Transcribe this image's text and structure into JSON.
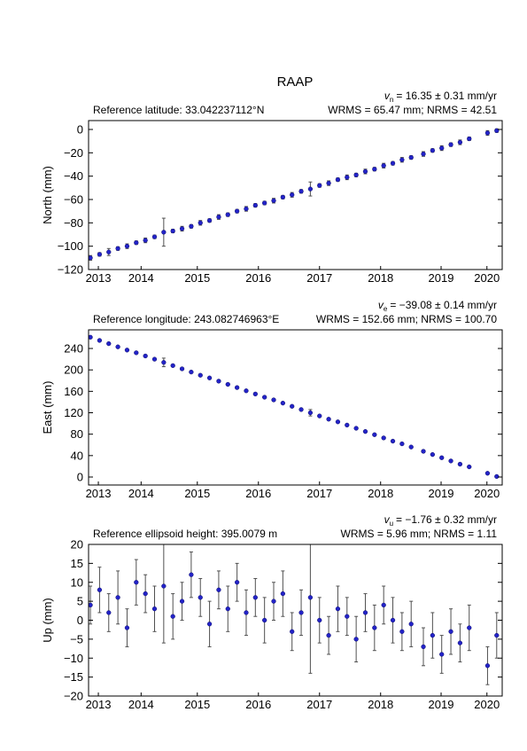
{
  "title": "RAAP",
  "chart_data": [
    {
      "type": "scatter",
      "y_label": "North (mm)",
      "reference": "Reference latitude: 33.042237112°N",
      "velocity": {
        "symbol": "v",
        "subscript": "n",
        "text": "= 16.35 ± 0.31 mm/yr"
      },
      "stats": "WRMS = 65.47 mm; NRMS = 42.51",
      "xlim": [
        2013.72,
        2020.49
      ],
      "xticks": [
        {
          "value": 2013.88,
          "label": "2013"
        },
        {
          "value": 2014.58,
          "label": "2014"
        },
        {
          "value": 2015.5,
          "label": "2015"
        },
        {
          "value": 2016.5,
          "label": "2016"
        },
        {
          "value": 2017.5,
          "label": "2017"
        },
        {
          "value": 2018.5,
          "label": "2018"
        },
        {
          "value": 2019.49,
          "label": "2019"
        },
        {
          "value": 2020.24,
          "label": "2020"
        }
      ],
      "ylim": [
        -120,
        7.6
      ],
      "yticks": [
        {
          "value": -120,
          "label": "−120"
        },
        {
          "value": -100,
          "label": "−100"
        },
        {
          "value": -80,
          "label": "−80"
        },
        {
          "value": -60,
          "label": "−60"
        },
        {
          "value": -40,
          "label": "−40"
        },
        {
          "value": -20,
          "label": "−20"
        },
        0
      ],
      "color": "#2323c8",
      "error_color": "#505050",
      "x": [
        2013.75,
        2013.9,
        2014.05,
        2014.2,
        2014.35,
        2014.5,
        2014.65,
        2014.8,
        2014.95,
        2015.1,
        2015.25,
        2015.4,
        2015.55,
        2015.7,
        2015.85,
        2016.0,
        2016.15,
        2016.3,
        2016.45,
        2016.6,
        2016.75,
        2016.9,
        2017.05,
        2017.2,
        2017.35,
        2017.5,
        2017.65,
        2017.8,
        2017.95,
        2018.1,
        2018.25,
        2018.4,
        2018.55,
        2018.7,
        2018.85,
        2019.0,
        2019.2,
        2019.35,
        2019.5,
        2019.65,
        2019.8,
        2019.95,
        2020.25,
        2020.4
      ],
      "values": [
        -110,
        -107,
        -105,
        -102,
        -100,
        -97,
        -95,
        -92,
        -88,
        -87,
        -85,
        -83,
        -80,
        -78,
        -75,
        -73,
        -70,
        -68,
        -65,
        -63,
        -61,
        -58,
        -56,
        -53,
        -51,
        -48,
        -46,
        -43,
        -41,
        -39,
        -36,
        -34,
        -31,
        -29,
        -26,
        -24,
        -21,
        -18,
        -16,
        -13,
        -11,
        -8,
        -3,
        -1
      ],
      "errors": [
        2,
        1.5,
        3,
        1.5,
        2,
        1.5,
        2,
        1.5,
        12,
        1.5,
        2,
        1.5,
        2,
        1.5,
        2,
        1.5,
        1.5,
        2,
        1.5,
        1.5,
        2,
        1.5,
        2,
        1.5,
        6,
        1.5,
        2,
        1.5,
        2,
        1.5,
        2,
        1.5,
        2,
        1.5,
        2,
        1.5,
        2,
        1.5,
        2,
        1.5,
        2,
        1.5,
        2,
        1.5
      ]
    },
    {
      "type": "scatter",
      "y_label": "East (mm)",
      "reference": "Reference longitude: 243.082746963°E",
      "velocity": {
        "symbol": "v",
        "subscript": "e",
        "text": "= −39.08 ± 0.14 mm/yr"
      },
      "stats": "WRMS = 152.66 mm; NRMS = 100.70",
      "xlim": [
        2013.72,
        2020.49
      ],
      "xticks": [
        {
          "value": 2013.88,
          "label": "2013"
        },
        {
          "value": 2014.58,
          "label": "2014"
        },
        {
          "value": 2015.5,
          "label": "2015"
        },
        {
          "value": 2016.5,
          "label": "2016"
        },
        {
          "value": 2017.5,
          "label": "2017"
        },
        {
          "value": 2018.5,
          "label": "2018"
        },
        {
          "value": 2019.49,
          "label": "2019"
        },
        {
          "value": 2020.24,
          "label": "2020"
        }
      ],
      "ylim": [
        -14.9,
        274.8
      ],
      "yticks": [
        0,
        40,
        80,
        120,
        160,
        200,
        240
      ],
      "color": "#2323c8",
      "error_color": "#505050",
      "x": [
        2013.75,
        2013.9,
        2014.05,
        2014.2,
        2014.35,
        2014.5,
        2014.65,
        2014.8,
        2014.95,
        2015.1,
        2015.25,
        2015.4,
        2015.55,
        2015.7,
        2015.85,
        2016.0,
        2016.15,
        2016.3,
        2016.45,
        2016.6,
        2016.75,
        2016.9,
        2017.05,
        2017.2,
        2017.35,
        2017.5,
        2017.65,
        2017.8,
        2017.95,
        2018.1,
        2018.25,
        2018.4,
        2018.55,
        2018.7,
        2018.85,
        2019.0,
        2019.2,
        2019.35,
        2019.5,
        2019.65,
        2019.8,
        2019.95,
        2020.25,
        2020.4
      ],
      "values": [
        261,
        255,
        249,
        243,
        237,
        232,
        226,
        220,
        214,
        208,
        202,
        196,
        190,
        185,
        179,
        173,
        167,
        161,
        155,
        149,
        144,
        138,
        132,
        126,
        120,
        114,
        108,
        103,
        97,
        91,
        85,
        79,
        73,
        67,
        62,
        56,
        48,
        42,
        36,
        30,
        24,
        19,
        7,
        1
      ],
      "errors": [
        2,
        1.5,
        2,
        1.5,
        2,
        1.5,
        2,
        1.5,
        8,
        1.5,
        2,
        1.5,
        2,
        1.5,
        2,
        1.5,
        2,
        1.5,
        2,
        1.5,
        2,
        1.5,
        2,
        1.5,
        6,
        1.5,
        2,
        1.5,
        2,
        1.5,
        2,
        1.5,
        2,
        1.5,
        2,
        1.5,
        2,
        1.5,
        2,
        1.5,
        2,
        1.5,
        2,
        1.5
      ]
    },
    {
      "type": "scatter",
      "y_label": "Up (mm)",
      "reference": "Reference ellipsoid height: 395.0079 m",
      "velocity": {
        "symbol": "v",
        "subscript": "u",
        "text": "= −1.76 ± 0.32 mm/yr"
      },
      "stats": "WRMS = 5.96 mm; NRMS = 1.11",
      "xlim": [
        2013.72,
        2020.49
      ],
      "xticks": [
        {
          "value": 2013.88,
          "label": "2013"
        },
        {
          "value": 2014.58,
          "label": "2014"
        },
        {
          "value": 2015.5,
          "label": "2015"
        },
        {
          "value": 2016.5,
          "label": "2016"
        },
        {
          "value": 2017.5,
          "label": "2017"
        },
        {
          "value": 2018.5,
          "label": "2018"
        },
        {
          "value": 2019.49,
          "label": "2019"
        },
        {
          "value": 2020.24,
          "label": "2020"
        }
      ],
      "ylim": [
        -20,
        20
      ],
      "yticks": [
        {
          "value": -20,
          "label": "−20"
        },
        {
          "value": -15,
          "label": "−15"
        },
        {
          "value": -10,
          "label": "−10"
        },
        {
          "value": -5,
          "label": "−5"
        },
        0,
        5,
        10,
        15,
        20
      ],
      "color": "#2323c8",
      "error_color": "#505050",
      "x": [
        2013.75,
        2013.9,
        2014.05,
        2014.2,
        2014.35,
        2014.5,
        2014.65,
        2014.8,
        2014.95,
        2015.1,
        2015.25,
        2015.4,
        2015.55,
        2015.7,
        2015.85,
        2016.0,
        2016.15,
        2016.3,
        2016.45,
        2016.6,
        2016.75,
        2016.9,
        2017.05,
        2017.2,
        2017.35,
        2017.5,
        2017.65,
        2017.8,
        2017.95,
        2018.1,
        2018.25,
        2018.4,
        2018.55,
        2018.7,
        2018.85,
        2019.0,
        2019.2,
        2019.35,
        2019.5,
        2019.65,
        2019.8,
        2019.95,
        2020.25,
        2020.4
      ],
      "values": [
        4,
        8,
        2,
        6,
        -2,
        10,
        7,
        3,
        9,
        1,
        5,
        12,
        6,
        -1,
        8,
        3,
        10,
        2,
        6,
        0,
        5,
        7,
        -3,
        2,
        6,
        0,
        -4,
        3,
        1,
        -5,
        2,
        -2,
        4,
        0,
        -3,
        -1,
        -7,
        -4,
        -9,
        -3,
        -6,
        -2,
        -12,
        -4
      ],
      "errors": [
        5,
        6,
        5,
        7,
        5,
        6,
        5,
        6,
        15,
        6,
        5,
        6,
        5,
        6,
        5,
        6,
        5,
        6,
        5,
        6,
        5,
        6,
        5,
        6,
        20,
        6,
        5,
        6,
        5,
        6,
        5,
        6,
        5,
        6,
        5,
        6,
        5,
        6,
        5,
        6,
        5,
        6,
        5,
        6
      ]
    }
  ]
}
